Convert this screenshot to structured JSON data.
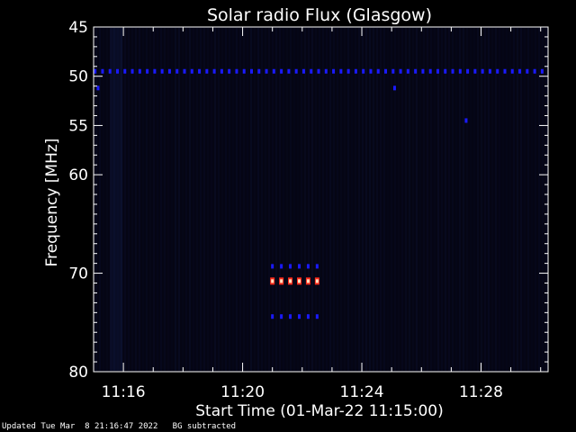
{
  "chart_data": {
    "type": "heatmap",
    "title": "Solar radio Flux (Glasgow)",
    "xlabel": "Start Time (01-Mar-22 11:15:00)",
    "ylabel": "Frequency [MHz]",
    "x_range_min": [
      15.0,
      30.25
    ],
    "y_range_mhz": [
      45,
      80
    ],
    "x_ticks": [
      {
        "min": 16,
        "label": "11:16"
      },
      {
        "min": 20,
        "label": "11:20"
      },
      {
        "min": 24,
        "label": "11:24"
      },
      {
        "min": 28,
        "label": "11:28"
      }
    ],
    "y_ticks": [
      {
        "mhz": 45,
        "label": "45"
      },
      {
        "mhz": 50,
        "label": "50"
      },
      {
        "mhz": 55,
        "label": "55"
      },
      {
        "mhz": 60,
        "label": "60"
      },
      {
        "mhz": 70,
        "label": "70"
      },
      {
        "mhz": 80,
        "label": "80"
      }
    ],
    "background_color": "#050514",
    "colors": {
      "low": "#1a1aff",
      "mid": "#ff2a1a",
      "high": "#ffe0c0"
    },
    "features": [
      {
        "name": "interference-line",
        "freq_mhz": 49.5,
        "t_start": 15.05,
        "t_end": 30.2,
        "step": 0.25,
        "level": "low"
      },
      {
        "name": "burst-upper",
        "freq_mhz": 69.3,
        "t_start": 21.0,
        "t_end": 22.6,
        "step": 0.3,
        "level": "low"
      },
      {
        "name": "burst-core",
        "freq_mhz": 70.8,
        "t_start": 21.0,
        "t_end": 22.6,
        "step": 0.3,
        "level": "mid"
      },
      {
        "name": "burst-lower",
        "freq_mhz": 74.4,
        "t_start": 21.0,
        "t_end": 22.6,
        "step": 0.3,
        "level": "low"
      },
      {
        "name": "weak-spot",
        "freq_mhz": 54.5,
        "t_start": 27.5,
        "t_end": 27.5,
        "step": 1,
        "level": "low"
      },
      {
        "name": "weak-spot",
        "freq_mhz": 51.2,
        "t_start": 25.1,
        "t_end": 25.1,
        "step": 1,
        "level": "low"
      },
      {
        "name": "weak-spot",
        "freq_mhz": 51.2,
        "t_start": 15.15,
        "t_end": 15.15,
        "step": 1,
        "level": "low"
      }
    ]
  },
  "footer": {
    "updated": "Updated Tue Mar  8 21:16:47 2022",
    "note": "BG subtracted"
  }
}
